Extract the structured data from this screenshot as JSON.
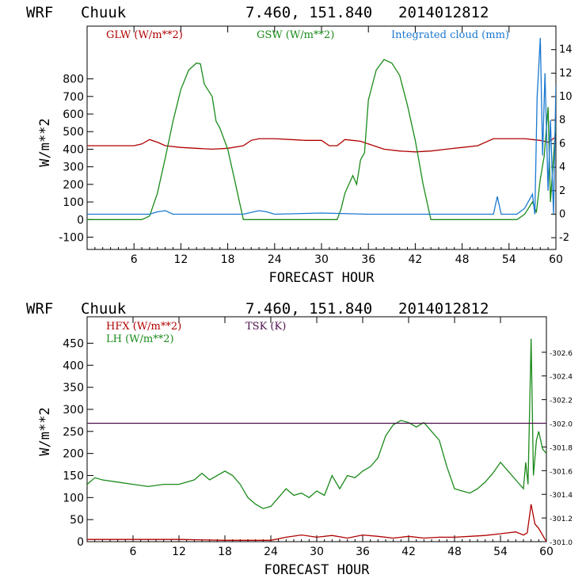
{
  "chart_data": [
    {
      "type": "line",
      "header": {
        "model": "WRF",
        "station": "Chuuk",
        "coords": "7.460, 151.840",
        "run": "2014012812"
      },
      "xlabel": "FORECAST HOUR",
      "ylabel": "W/m**2",
      "xlim": [
        0,
        60
      ],
      "ylim": [
        -170,
        1100
      ],
      "xticks": [
        6,
        12,
        18,
        24,
        30,
        36,
        42,
        48,
        54,
        60
      ],
      "yticks": [
        -100,
        0,
        100,
        200,
        300,
        400,
        500,
        600,
        700,
        800
      ],
      "y2lim": [
        -3,
        16
      ],
      "y2ticks": [
        -2,
        0,
        2,
        4,
        6,
        8,
        10,
        12,
        14
      ],
      "legend": [
        {
          "label": "GLW (W/m**2)",
          "color": "#b00000"
        },
        {
          "label": "GSW (W/m**2)",
          "color": "#1a8a1a"
        },
        {
          "label": "Integrated cloud (mm)",
          "color": "#1a78d0"
        }
      ],
      "series": [
        {
          "name": "GLW (W/m**2)",
          "color": "#b00000",
          "axis": "left",
          "x": [
            0,
            6,
            7,
            8,
            9,
            10,
            12,
            14,
            16,
            18,
            20,
            21,
            22,
            24,
            26,
            28,
            30,
            31,
            32,
            33,
            34,
            35,
            36,
            38,
            40,
            42,
            44,
            46,
            48,
            50,
            52,
            54,
            56,
            57,
            58,
            59,
            60
          ],
          "y": [
            420,
            420,
            430,
            455,
            440,
            420,
            410,
            405,
            400,
            405,
            420,
            450,
            460,
            460,
            455,
            450,
            450,
            420,
            420,
            455,
            450,
            445,
            430,
            400,
            390,
            385,
            390,
            400,
            410,
            420,
            460,
            460,
            460,
            455,
            450,
            440,
            470
          ]
        },
        {
          "name": "GSW (W/m**2)",
          "color": "#1a8a1a",
          "axis": "left",
          "x": [
            0,
            7,
            8,
            9,
            10,
            11,
            12,
            13,
            14,
            14.5,
            15,
            16,
            16.5,
            17,
            18,
            19,
            20,
            21,
            30,
            32,
            32.5,
            33,
            34,
            34.5,
            35,
            35.5,
            36,
            37,
            38,
            39,
            40,
            41,
            42,
            43,
            44,
            45,
            55,
            56,
            57,
            57.5,
            58,
            58.5,
            59,
            59.3,
            60
          ],
          "y": [
            0,
            0,
            20,
            150,
            350,
            560,
            740,
            850,
            890,
            885,
            770,
            700,
            560,
            520,
            400,
            200,
            0,
            0,
            0,
            0,
            60,
            150,
            250,
            200,
            340,
            380,
            680,
            850,
            910,
            890,
            820,
            650,
            450,
            200,
            0,
            0,
            0,
            30,
            100,
            40,
            230,
            360,
            640,
            100,
            550
          ]
        },
        {
          "name": "Integrated cloud (mm)",
          "color": "#1a78d0",
          "axis": "right",
          "x": [
            0,
            8,
            9,
            10,
            11,
            20,
            22,
            23,
            24,
            30,
            36,
            50,
            52,
            52.5,
            53,
            55,
            56,
            57,
            57.3,
            57.6,
            58,
            58.3,
            58.6,
            59,
            59.3,
            59.7,
            60
          ],
          "y": [
            0,
            0,
            0.2,
            0.3,
            0,
            0,
            0.3,
            0.2,
            0,
            0.1,
            0,
            0,
            0,
            1.5,
            0,
            0,
            0.5,
            1.7,
            0,
            10,
            15,
            5,
            12,
            2,
            8,
            0,
            11
          ]
        }
      ]
    },
    {
      "type": "line",
      "header": {
        "model": "WRF",
        "station": "Chuuk",
        "coords": "7.460, 151.840",
        "run": "2014012812"
      },
      "xlabel": "FORECAST HOUR",
      "ylabel": "W/m**2",
      "xlim": [
        0,
        60
      ],
      "ylim": [
        0,
        510
      ],
      "xticks": [
        6,
        12,
        18,
        24,
        30,
        36,
        42,
        48,
        54,
        60
      ],
      "yticks": [
        0,
        50,
        100,
        150,
        200,
        250,
        300,
        350,
        400,
        450
      ],
      "y2lim": [
        301.0,
        302.9
      ],
      "y2ticks": [
        "301.0",
        "301.2",
        "301.4",
        "301.6",
        "301.8",
        "302.0",
        "302.2",
        "302.4",
        "302.6"
      ],
      "legend": [
        {
          "label": "HFX (W/m**2)",
          "color": "#b00000"
        },
        {
          "label": "LH  (W/m**2)",
          "color": "#1a8a1a"
        },
        {
          "label": "TSK (K)",
          "color": "#4b0f4b"
        }
      ],
      "series": [
        {
          "name": "HFX (W/m**2)",
          "color": "#b00000",
          "axis": "left",
          "x": [
            0,
            6,
            12,
            18,
            24,
            26,
            28,
            30,
            32,
            34,
            36,
            38,
            40,
            42,
            44,
            46,
            48,
            50,
            52,
            54,
            56,
            57,
            57.5,
            58,
            58.5,
            59,
            60
          ],
          "y": [
            5,
            5,
            5,
            3,
            3,
            10,
            15,
            10,
            14,
            8,
            15,
            12,
            8,
            12,
            8,
            10,
            10,
            12,
            14,
            18,
            22,
            15,
            20,
            85,
            40,
            30,
            0
          ]
        },
        {
          "name": "LH  (W/m**2)",
          "color": "#1a8a1a",
          "axis": "left",
          "x": [
            0,
            1,
            2,
            4,
            6,
            8,
            10,
            12,
            14,
            15,
            16,
            18,
            19,
            20,
            21,
            22,
            23,
            24,
            25,
            26,
            27,
            28,
            29,
            30,
            31,
            32,
            33,
            34,
            35,
            36,
            37,
            38,
            39,
            40,
            41,
            42,
            43,
            44,
            45,
            46,
            47,
            48,
            49,
            50,
            51,
            52,
            53,
            54,
            55,
            56,
            57,
            57.3,
            57.6,
            58,
            58.3,
            58.7,
            59,
            59.5,
            60
          ],
          "y": [
            130,
            145,
            140,
            135,
            130,
            125,
            130,
            130,
            140,
            155,
            140,
            160,
            150,
            130,
            100,
            85,
            75,
            80,
            100,
            120,
            105,
            110,
            100,
            115,
            105,
            150,
            120,
            150,
            145,
            160,
            170,
            190,
            240,
            265,
            275,
            270,
            260,
            270,
            250,
            230,
            170,
            120,
            115,
            110,
            120,
            135,
            155,
            180,
            160,
            140,
            120,
            180,
            130,
            460,
            150,
            230,
            250,
            210,
            200
          ]
        },
        {
          "name": "TSK (K)",
          "color": "#4b0f4b",
          "axis": "right",
          "x": [
            0,
            60
          ],
          "y": [
            302.0,
            302.0
          ]
        }
      ]
    }
  ]
}
